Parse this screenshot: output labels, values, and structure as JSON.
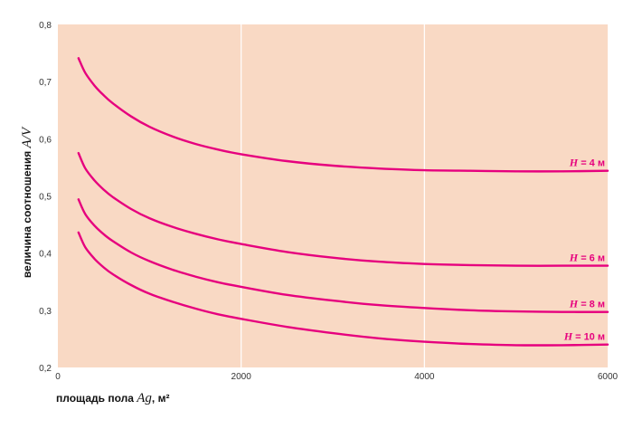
{
  "chart_data": {
    "type": "line",
    "xlabel": {
      "prefix": "площадь пола ",
      "var": "Ag",
      "suffix": ", м²"
    },
    "ylabel": {
      "prefix": "величина соотношения ",
      "var": "A/V"
    },
    "xlim": [
      0,
      6000
    ],
    "ylim": [
      0.2,
      0.8
    ],
    "x_ticks": [
      0,
      2000,
      4000,
      6000
    ],
    "x_tick_labels": [
      "0",
      "2000",
      "4000",
      "6000"
    ],
    "y_ticks": [
      0.2,
      0.3,
      0.4,
      0.5,
      0.6,
      0.7,
      0.8
    ],
    "y_tick_labels": [
      "0,2",
      "0,3",
      "0,4",
      "0,5",
      "0,6",
      "0,7",
      "0,8"
    ],
    "grid": "vertical",
    "colors": {
      "background": "#F9D9C4",
      "grid": "#FFFFFF",
      "line": "#E6007E"
    },
    "x": [
      225,
      300,
      400,
      500,
      600,
      800,
      1000,
      1250,
      1500,
      1750,
      2000,
      2500,
      3000,
      3500,
      4000,
      4500,
      5000,
      5500,
      6000
    ],
    "series": [
      {
        "label_var": "H",
        "label_text": " = 4 м",
        "values": [
          0.741,
          0.715,
          0.693,
          0.676,
          0.662,
          0.639,
          0.621,
          0.604,
          0.591,
          0.581,
          0.573,
          0.561,
          0.553,
          0.548,
          0.545,
          0.544,
          0.543,
          0.543,
          0.544
        ]
      },
      {
        "label_var": "H",
        "label_text": " = 6 м",
        "values": [
          0.575,
          0.548,
          0.527,
          0.511,
          0.498,
          0.477,
          0.461,
          0.446,
          0.434,
          0.424,
          0.416,
          0.402,
          0.392,
          0.385,
          0.381,
          0.379,
          0.378,
          0.378,
          0.378
        ]
      },
      {
        "label_var": "H",
        "label_text": " = 8 м",
        "values": [
          0.494,
          0.468,
          0.448,
          0.433,
          0.421,
          0.401,
          0.386,
          0.371,
          0.359,
          0.349,
          0.341,
          0.327,
          0.317,
          0.309,
          0.304,
          0.3,
          0.298,
          0.297,
          0.297
        ]
      },
      {
        "label_var": "H",
        "label_text": " = 10 м",
        "values": [
          0.436,
          0.41,
          0.39,
          0.375,
          0.363,
          0.344,
          0.329,
          0.315,
          0.303,
          0.293,
          0.285,
          0.271,
          0.26,
          0.251,
          0.245,
          0.241,
          0.239,
          0.239,
          0.24
        ]
      }
    ]
  }
}
